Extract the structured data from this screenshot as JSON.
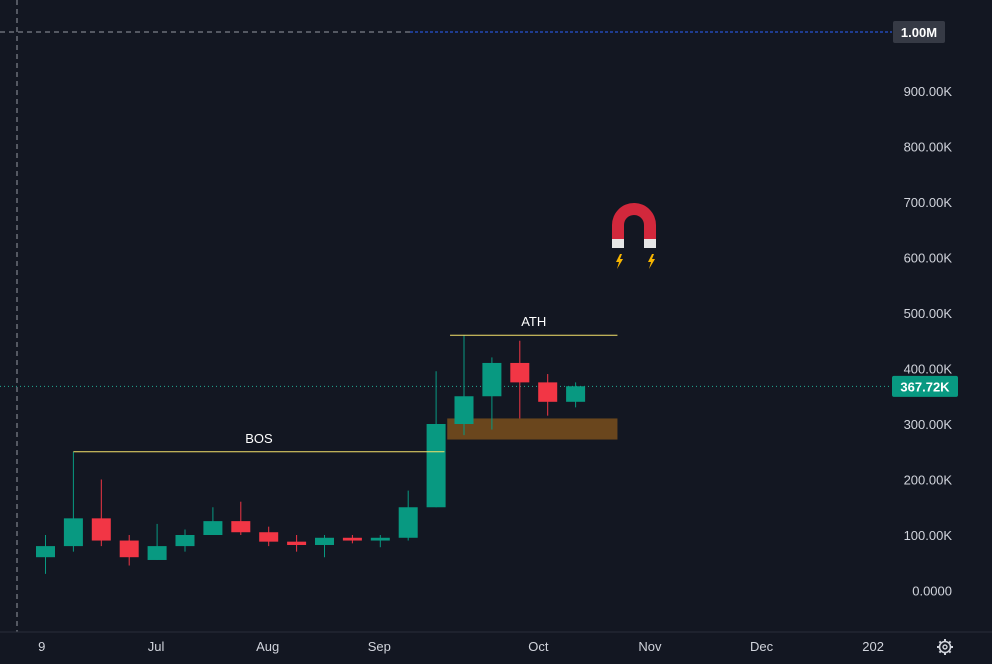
{
  "colors": {
    "background": "#131722",
    "up": "#089981",
    "down": "#f23645",
    "text": "#d1d4dc",
    "annotation_line": "#f5e26b",
    "zone": "#7a4f1c",
    "price_line": "#22ab94",
    "top_line": "#2962ff"
  },
  "chart_data": {
    "type": "candlestick",
    "title": "",
    "xlabel": "",
    "ylabel": "",
    "ylim": [
      -60000,
      1080000
    ],
    "grid": false,
    "y_ticks": [
      {
        "value": 900000,
        "label": "900.00K"
      },
      {
        "value": 800000,
        "label": "800.00K"
      },
      {
        "value": 700000,
        "label": "700.00K"
      },
      {
        "value": 600000,
        "label": "600.00K"
      },
      {
        "value": 500000,
        "label": "500.00K"
      },
      {
        "value": 400000,
        "label": "400.00K"
      },
      {
        "value": 300000,
        "label": "300.00K"
      },
      {
        "value": 200000,
        "label": "200.00K"
      },
      {
        "value": 100000,
        "label": "100.00K"
      },
      {
        "value": 0,
        "label": "0.0000"
      }
    ],
    "x_ticks": [
      {
        "index": -0.1,
        "label": "9"
      },
      {
        "index": 4,
        "label": "Jul"
      },
      {
        "index": 8,
        "label": "Aug"
      },
      {
        "index": 12,
        "label": "Sep"
      },
      {
        "index": 17.7,
        "label": "Oct"
      },
      {
        "index": 21.7,
        "label": "Nov"
      },
      {
        "index": 25.7,
        "label": "Dec"
      },
      {
        "index": 29.7,
        "label": "202"
      }
    ],
    "candles": [
      {
        "o": 60000,
        "h": 100000,
        "l": 30000,
        "c": 80000
      },
      {
        "o": 80000,
        "h": 250000,
        "l": 70000,
        "c": 130000
      },
      {
        "o": 130000,
        "h": 200000,
        "l": 80000,
        "c": 90000
      },
      {
        "o": 90000,
        "h": 100000,
        "l": 45000,
        "c": 60000
      },
      {
        "o": 55000,
        "h": 120000,
        "l": 55000,
        "c": 80000
      },
      {
        "o": 80000,
        "h": 110000,
        "l": 70000,
        "c": 100000
      },
      {
        "o": 100000,
        "h": 150000,
        "l": 100000,
        "c": 125000
      },
      {
        "o": 125000,
        "h": 160000,
        "l": 100000,
        "c": 105000
      },
      {
        "o": 105000,
        "h": 115000,
        "l": 80000,
        "c": 88000
      },
      {
        "o": 88000,
        "h": 100000,
        "l": 70000,
        "c": 82000
      },
      {
        "o": 82000,
        "h": 100000,
        "l": 60000,
        "c": 95000
      },
      {
        "o": 95000,
        "h": 100000,
        "l": 85000,
        "c": 90000
      },
      {
        "o": 90000,
        "h": 100000,
        "l": 78000,
        "c": 95000
      },
      {
        "o": 95000,
        "h": 180000,
        "l": 90000,
        "c": 150000
      },
      {
        "o": 150000,
        "h": 395000,
        "l": 150000,
        "c": 300000
      },
      {
        "o": 300000,
        "h": 460000,
        "l": 280000,
        "c": 350000
      },
      {
        "o": 350000,
        "h": 420000,
        "l": 290000,
        "c": 410000
      },
      {
        "o": 410000,
        "h": 450000,
        "l": 310000,
        "c": 375000
      },
      {
        "o": 375000,
        "h": 390000,
        "l": 315000,
        "c": 340000
      },
      {
        "o": 340000,
        "h": 375000,
        "l": 330000,
        "c": 368000
      }
    ],
    "current_price": {
      "value": 367720,
      "label": "367.72K"
    },
    "top_level": {
      "value": 1000000,
      "label": "1.00M"
    },
    "annotations": [
      {
        "text": "BOS",
        "value": 250000,
        "from": 1,
        "to": 14.3
      },
      {
        "text": "ATH",
        "value": 460000,
        "from": 14.5,
        "to": 20.5
      }
    ],
    "zone": {
      "from": 14.4,
      "to": 20.5,
      "top": 310000,
      "bottom": 272000
    }
  }
}
